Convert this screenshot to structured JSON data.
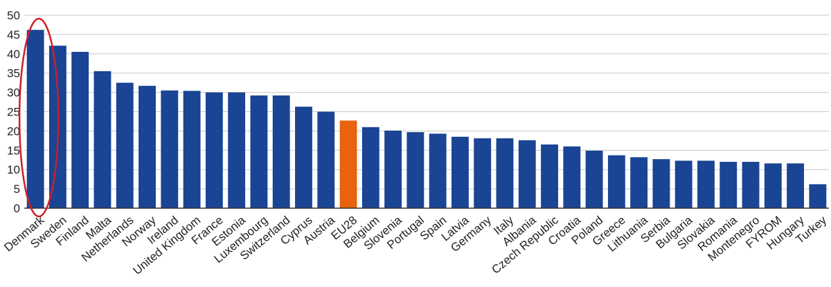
{
  "chart_data": {
    "type": "bar",
    "title": "",
    "xlabel": "",
    "ylabel": "",
    "ylim": [
      0,
      50
    ],
    "yticks": [
      0,
      5,
      10,
      15,
      20,
      25,
      30,
      35,
      40,
      45,
      50
    ],
    "grid": true,
    "categories": [
      "Denmark",
      "Sweden",
      "Finland",
      "Malta",
      "Netherlands",
      "Norway",
      "Ireland",
      "United Kingdom",
      "France",
      "Estonia",
      "Luxembourg",
      "Switzerland",
      "Cyprus",
      "Austria",
      "EU28",
      "Belgium",
      "Slovenia",
      "Portugal",
      "Spain",
      "Latvia",
      "Germany",
      "Italy",
      "Albania",
      "Czech Republic",
      "Croatia",
      "Poland",
      "Greece",
      "Lithuania",
      "Serbia",
      "Bulgaria",
      "Slovakia",
      "Romania",
      "Montenegro",
      "FYROM",
      "Hungary",
      "Turkey"
    ],
    "values": [
      46.2,
      42.1,
      40.5,
      35.5,
      32.5,
      31.7,
      30.5,
      30.4,
      30.0,
      30.0,
      29.2,
      29.2,
      26.3,
      25.0,
      22.7,
      21.0,
      20.1,
      19.7,
      19.3,
      18.5,
      18.1,
      18.1,
      17.6,
      16.5,
      16.0,
      14.9,
      13.7,
      13.2,
      12.7,
      12.3,
      12.3,
      12.0,
      12.0,
      11.6,
      11.6,
      6.2
    ],
    "highlight_category": "EU28",
    "circled_category": "Denmark",
    "colors": {
      "bar": "#1a4494",
      "highlight": "#e8620f",
      "circle": "#cc2026",
      "grid": "#c8c8c8",
      "axis": "#333333"
    }
  }
}
